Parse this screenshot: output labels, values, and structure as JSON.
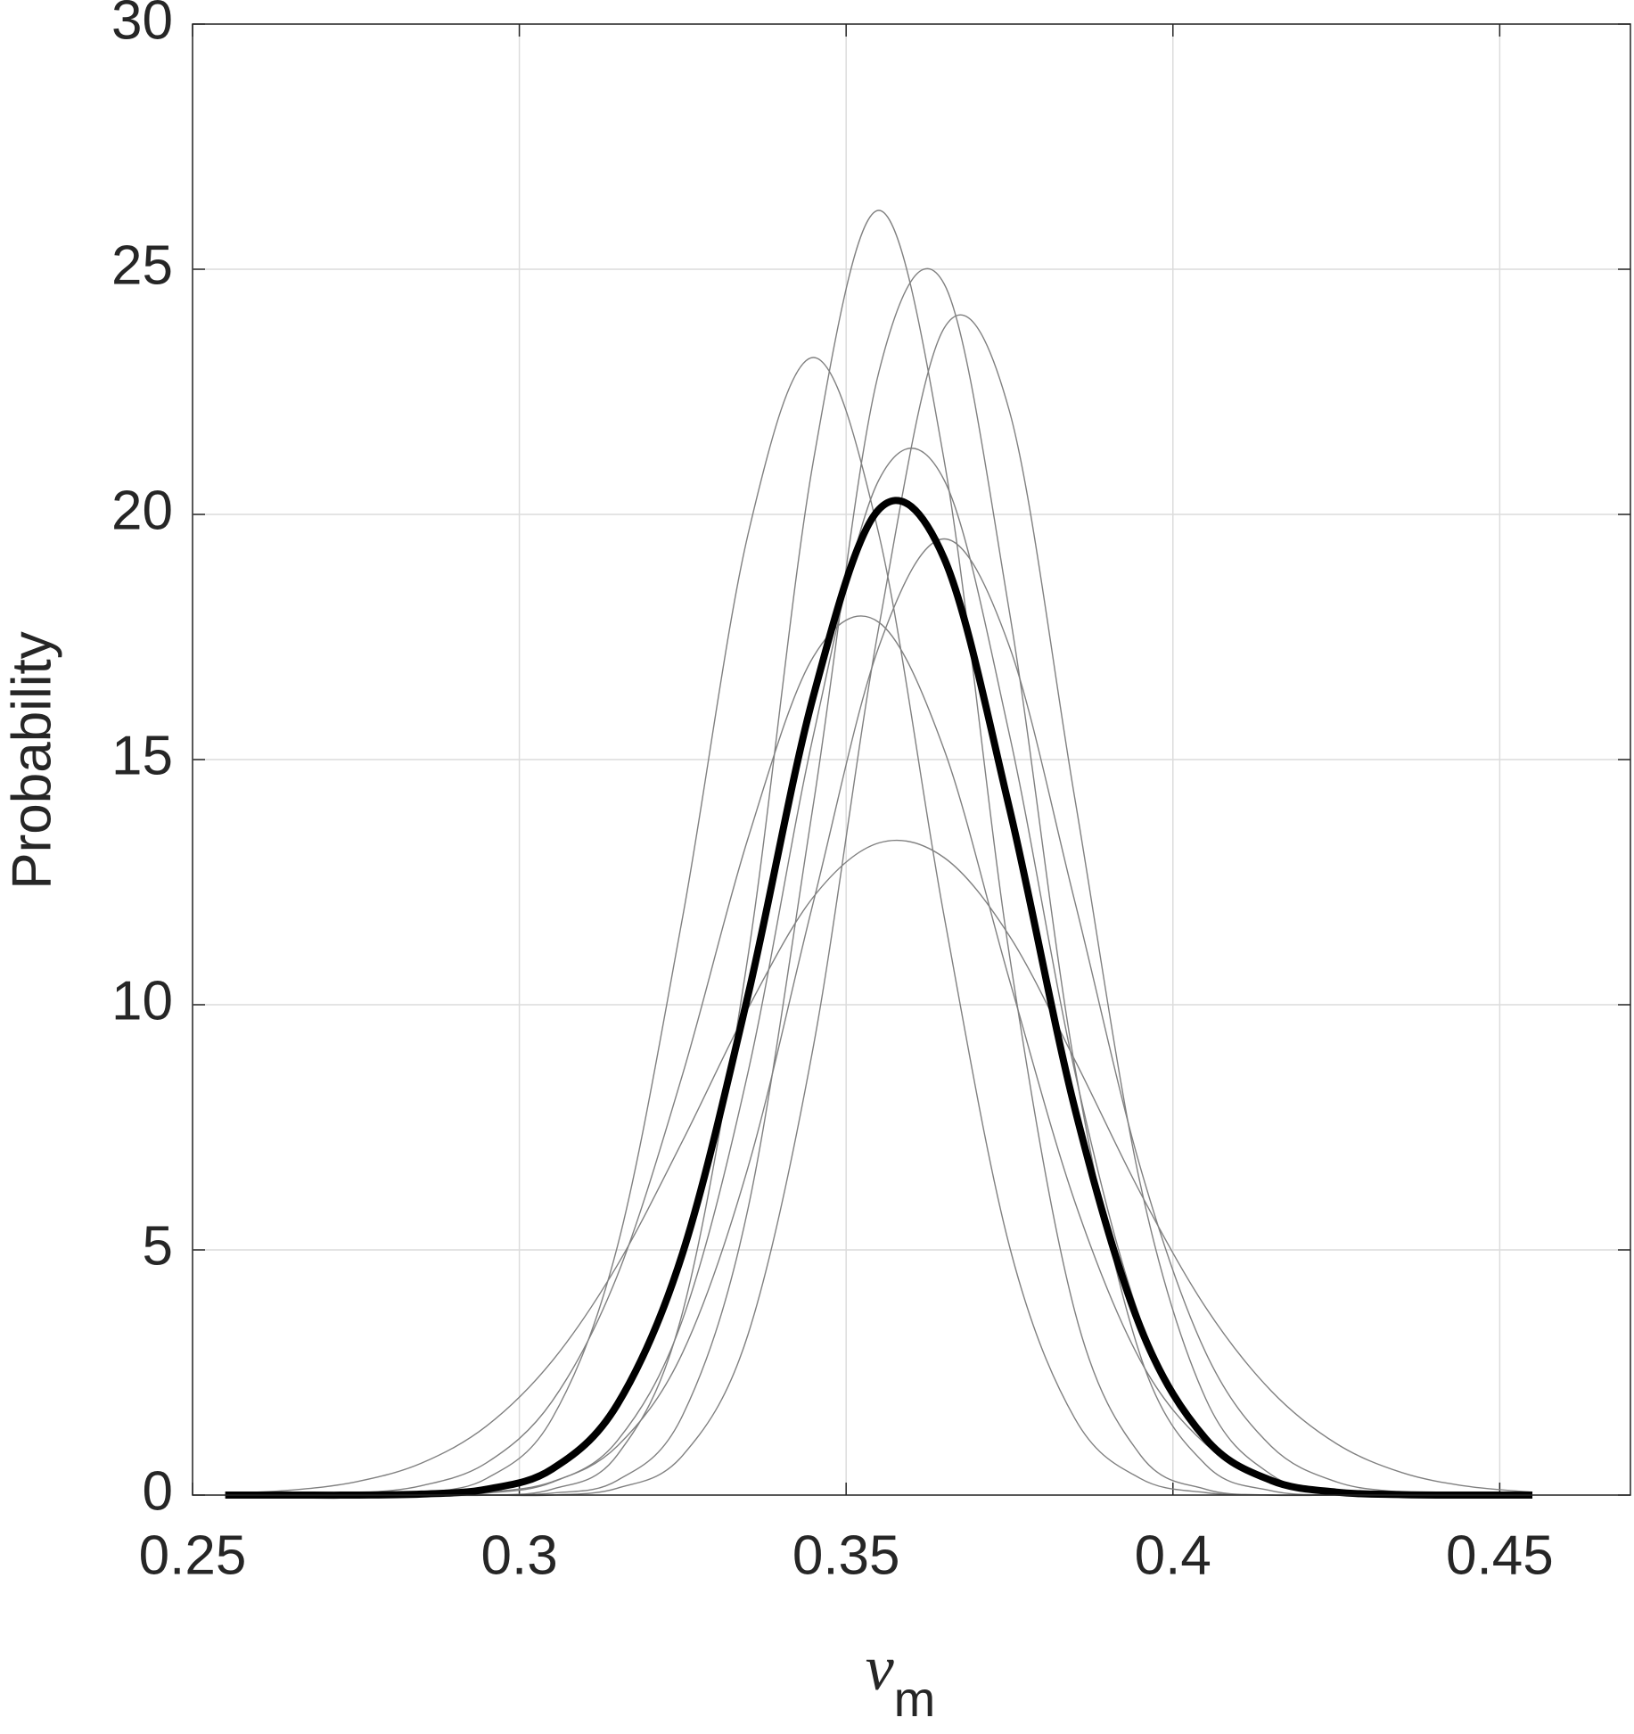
{
  "chart_data": {
    "type": "line",
    "ylabel": "Probability",
    "xlabel": "ν",
    "xlabel_subscript": "m",
    "x": [
      0.255,
      0.265,
      0.275,
      0.285,
      0.295,
      0.305,
      0.315,
      0.325,
      0.335,
      0.345,
      0.355,
      0.365,
      0.375,
      0.385,
      0.395,
      0.405,
      0.415,
      0.425,
      0.435,
      0.445,
      0.455
    ],
    "series": [
      {
        "color": "#808080",
        "width": 1.4,
        "values": [
          0,
          0,
          0,
          0,
          0,
          0.12,
          0.82,
          3.74,
          11.0,
          21.1,
          26.2,
          21.1,
          11.0,
          3.74,
          0.82,
          0.12,
          0,
          0,
          0,
          0,
          0
        ]
      },
      {
        "color": "#808080",
        "width": 1.4,
        "values": [
          0,
          0,
          0,
          0,
          0,
          0.04,
          0.3,
          1.63,
          5.85,
          14.1,
          22.9,
          24.7,
          18.0,
          8.73,
          2.85,
          0.62,
          0.09,
          0,
          0,
          0,
          0
        ]
      },
      {
        "color": "#808080",
        "width": 1.4,
        "values": [
          0,
          0,
          0,
          0.05,
          0.34,
          1.56,
          5.07,
          11.8,
          19.6,
          23.2,
          19.6,
          11.8,
          5.07,
          1.56,
          0.34,
          0.05,
          0,
          0,
          0,
          0,
          0
        ]
      },
      {
        "color": "#808080",
        "width": 1.4,
        "values": [
          0,
          0,
          0,
          0,
          0,
          0,
          0.14,
          0.81,
          3.28,
          9.16,
          17.7,
          23.8,
          22.1,
          14.2,
          6.35,
          1.97,
          0.42,
          0.06,
          0,
          0,
          0
        ]
      },
      {
        "color": "#808080",
        "width": 1.4,
        "values": [
          0.03,
          0.1,
          0.27,
          0.65,
          1.41,
          2.73,
          4.69,
          7.23,
          9.93,
          12.2,
          13.3,
          13.0,
          11.4,
          8.87,
          6.17,
          3.83,
          2.13,
          1.05,
          0.46,
          0.18,
          0.06
        ]
      },
      {
        "color": "#808080",
        "width": 1.4,
        "values": [
          0,
          0.01,
          0.04,
          0.19,
          0.66,
          1.91,
          4.48,
          8.59,
          13.4,
          17.1,
          17.8,
          15.2,
          10.5,
          5.98,
          2.75,
          1.04,
          0.32,
          0.08,
          0.02,
          0,
          0
        ]
      },
      {
        "color": "#808080",
        "width": 1.4,
        "values": [
          0,
          0,
          0,
          0.01,
          0.06,
          0.27,
          1.0,
          2.91,
          6.69,
          12.1,
          17.3,
          19.5,
          17.3,
          12.1,
          6.69,
          2.91,
          1.0,
          0.27,
          0.06,
          0,
          0
        ]
      },
      {
        "color": "#808080",
        "width": 1.4,
        "values": [
          0,
          0,
          0,
          0,
          0.04,
          0.26,
          1.11,
          3.59,
          8.63,
          15.5,
          20.7,
          20.7,
          15.5,
          8.63,
          3.59,
          1.11,
          0.26,
          0.04,
          0,
          0,
          0
        ]
      },
      {
        "color": "#000000",
        "width": 8,
        "values": [
          0,
          0,
          0,
          0.02,
          0.12,
          0.53,
          1.85,
          4.94,
          10.2,
          16.3,
          20.1,
          19.1,
          14.0,
          7.88,
          3.43,
          1.15,
          0.3,
          0.06,
          0.01,
          0,
          0
        ]
      }
    ],
    "xlim": [
      0.25,
      0.47
    ],
    "xticks": [
      0.25,
      0.3,
      0.35,
      0.4,
      0.45
    ],
    "ylim": [
      0,
      30
    ],
    "yticks": [
      0,
      5,
      10,
      15,
      20,
      25,
      30
    ],
    "grid": true
  }
}
